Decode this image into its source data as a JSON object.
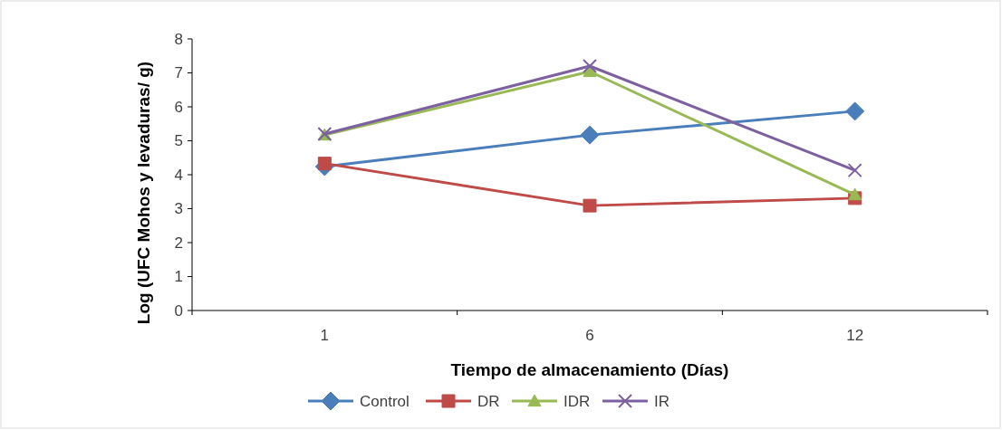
{
  "chart_data": {
    "type": "line",
    "xlabel": "Tiempo de almacenamiento (Días)",
    "ylabel": "Log (UFC Mohos y levaduras/ g)",
    "categories": [
      "1",
      "6",
      "12"
    ],
    "ylim": [
      0,
      8
    ],
    "yticks": [
      0,
      1,
      2,
      3,
      4,
      5,
      6,
      7,
      8
    ],
    "grid": false,
    "legend": "bottom",
    "series": [
      {
        "name": "Control",
        "color": "#4a7ebb",
        "marker": "diamond",
        "values": [
          4.24,
          5.17,
          5.87
        ]
      },
      {
        "name": "DR",
        "color": "#be4b48",
        "marker": "square",
        "values": [
          4.33,
          3.09,
          3.31
        ]
      },
      {
        "name": "IDR",
        "color": "#98b954",
        "marker": "triangle",
        "values": [
          5.17,
          7.04,
          3.41
        ]
      },
      {
        "name": "IR",
        "color": "#7d60a0",
        "marker": "cross",
        "values": [
          5.2,
          7.2,
          4.13
        ]
      }
    ]
  }
}
